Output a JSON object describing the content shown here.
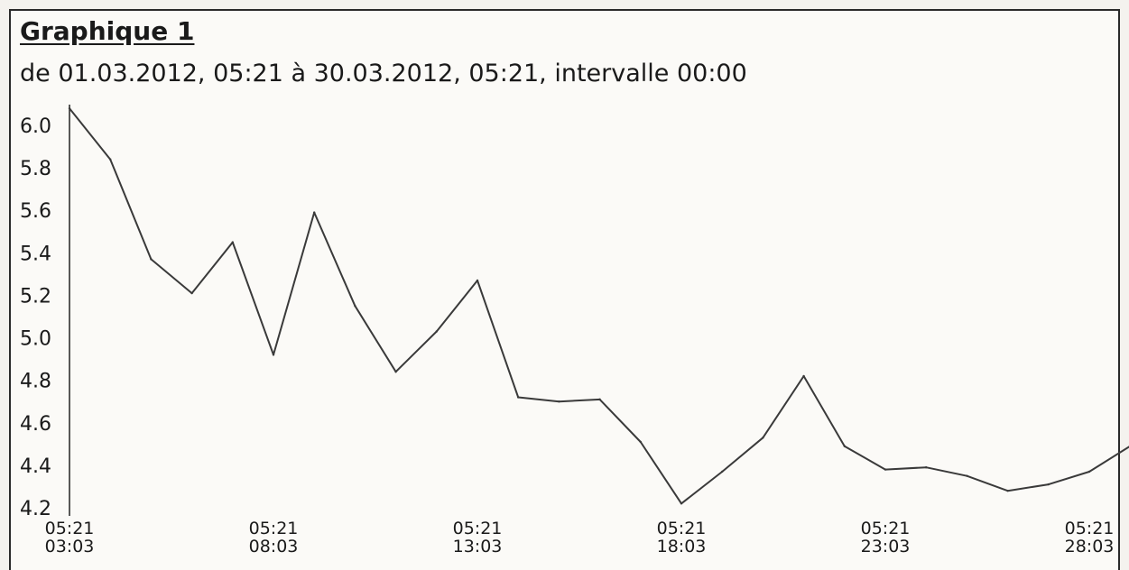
{
  "chart_data": {
    "type": "line",
    "title": "Graphique 1",
    "subtitle": "de 01.03.2012, 05:21 à 30.03.2012, 05:21, intervalle 00:00",
    "xlabel": "",
    "ylabel": "",
    "ylim": [
      4.2,
      6.0
    ],
    "yticks": [
      "6.0",
      "5.8",
      "5.6",
      "5.4",
      "5.2",
      "5.0",
      "4.8",
      "4.6",
      "4.4",
      "4.2"
    ],
    "xticks": [
      {
        "day": 3,
        "time": "05:21",
        "date": "03:03"
      },
      {
        "day": 8,
        "time": "05:21",
        "date": "08:03"
      },
      {
        "day": 13,
        "time": "05:21",
        "date": "13:03"
      },
      {
        "day": 18,
        "time": "05:21",
        "date": "18:03"
      },
      {
        "day": 23,
        "time": "05:21",
        "date": "23:03"
      },
      {
        "day": 28,
        "time": "05:21",
        "date": "28:03"
      }
    ],
    "grid": false,
    "series": [
      {
        "x": [
          3,
          4,
          5,
          6,
          7,
          8,
          9,
          10,
          11,
          12,
          13,
          14,
          15,
          16,
          17,
          18,
          19,
          20,
          21,
          22,
          23,
          24,
          25,
          26,
          27,
          28,
          29
        ],
        "values": [
          6.08,
          5.84,
          5.37,
          5.21,
          5.45,
          4.92,
          5.59,
          5.15,
          4.84,
          5.03,
          5.27,
          4.72,
          4.7,
          4.71,
          4.51,
          4.22,
          4.37,
          4.53,
          4.82,
          4.49,
          4.38,
          4.39,
          4.35,
          4.28,
          4.31,
          4.37,
          4.49
        ],
        "color": "#3a3a3a"
      }
    ]
  }
}
